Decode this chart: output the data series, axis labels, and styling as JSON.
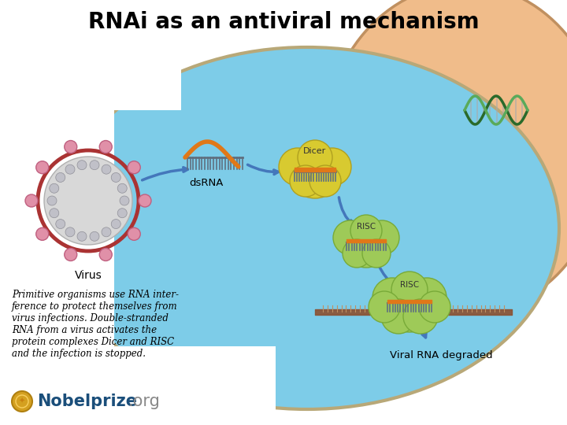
{
  "title": "RNAi as an antiviral mechanism",
  "title_fontsize": 20,
  "title_fontweight": "bold",
  "bg_color": "#ffffff",
  "cell_bg_color": "#f0bc8a",
  "cytoplasm_color": "#7dcce8",
  "cytoplasm_edge": "#b8a878",
  "body_text": "Primitive organisms use RNA inter-\nference to protect themselves from\nvirus infections. Double-stranded\nRNA from a virus activates the\nprotein complexes Dicer and RISC\nand the infection is stopped.",
  "virus_label": "Virus",
  "dsrna_label": "dsRNA",
  "dicer_label": "Dicer",
  "risc_label1": "RISC",
  "risc_label2": "RISC",
  "viral_rna_label": "Viral RNA degraded",
  "nobelprize_bold": "Nobelprize",
  "nobelprize_gray": ".org",
  "nobel_bold_color": "#1a4e7a",
  "nobel_gray_color": "#888888",
  "nobel_medal_color": "#d4a020",
  "arrow_color": "#4477bb",
  "orange_color": "#e07818",
  "green_cloud_color": "#9eca58",
  "green_cloud_edge": "#78aa38",
  "yellow_cloud_color": "#d8ca30",
  "yellow_cloud_edge": "#b0a020",
  "brush_color": "#607080",
  "brown_rna_color": "#8B5030"
}
